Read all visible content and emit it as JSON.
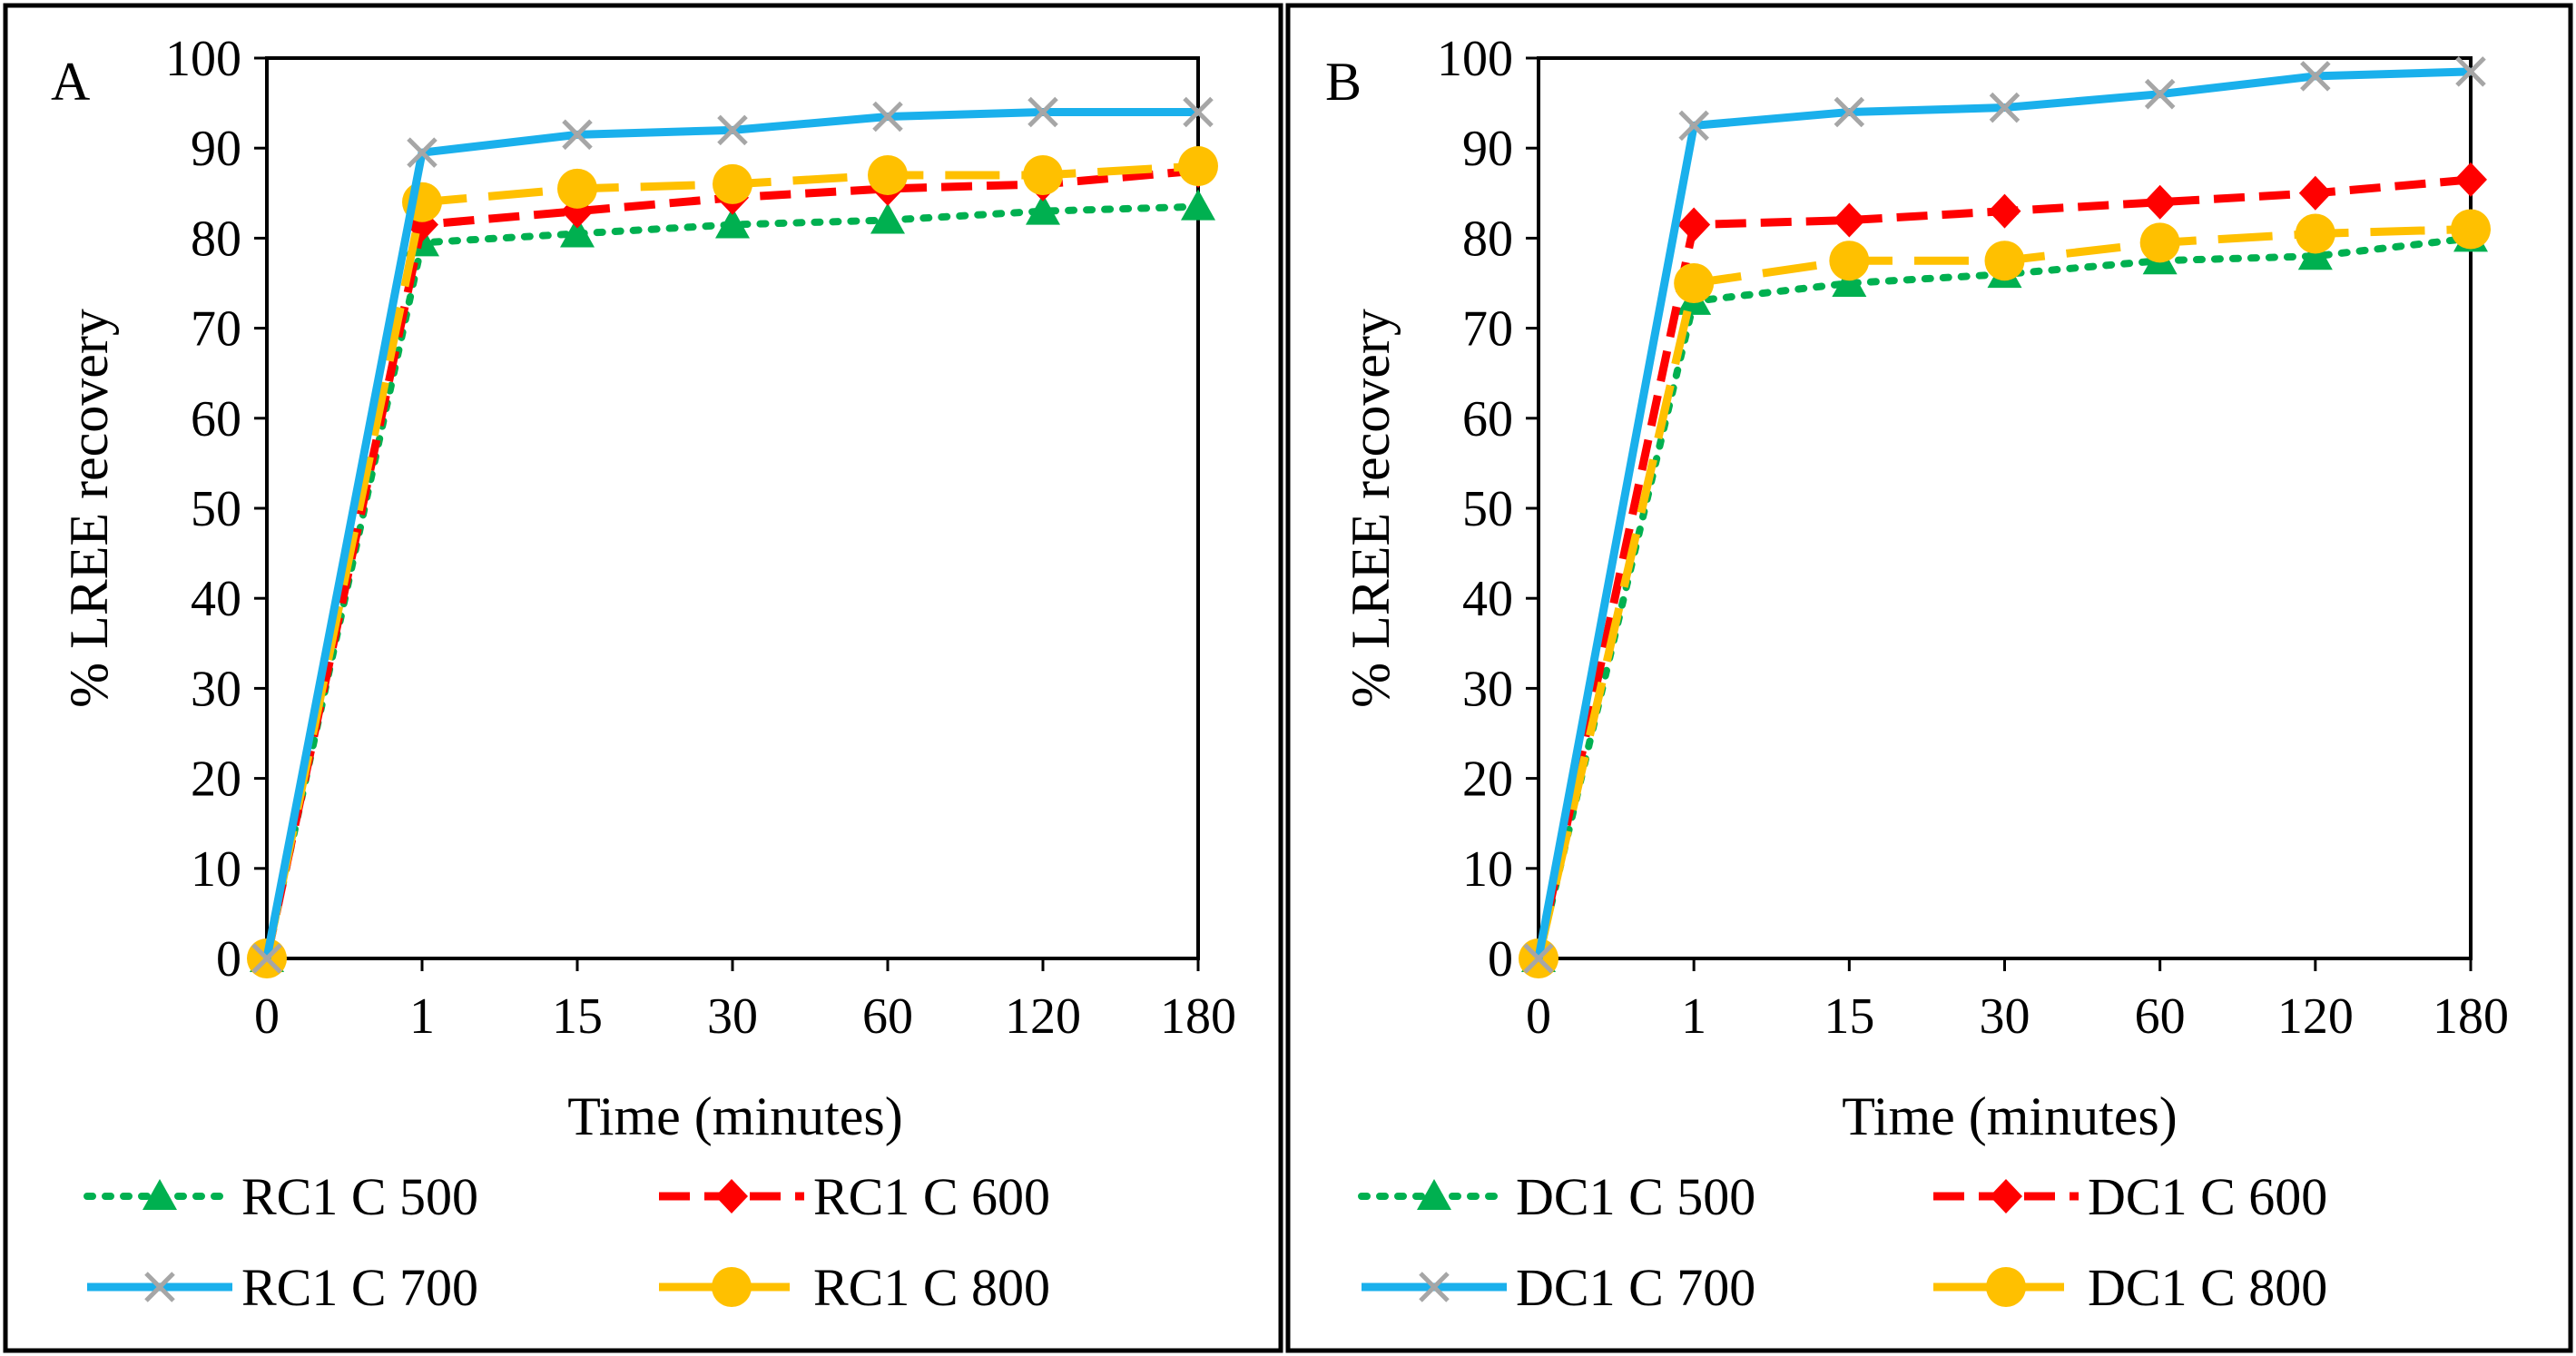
{
  "chart_data": [
    {
      "type": "line",
      "panel_label": "A",
      "categories": [
        "0",
        "1",
        "15",
        "30",
        "60",
        "120",
        "180"
      ],
      "xlabel": "Time (minutes)",
      "ylabel": "% LREE recovery",
      "ylim": [
        0,
        100
      ],
      "yticks": [
        "0",
        "10",
        "20",
        "30",
        "40",
        "50",
        "60",
        "70",
        "80",
        "90",
        "100"
      ],
      "grid": false,
      "legend_position": "bottom",
      "series": [
        {
          "name": "RC1 C 500",
          "values": [
            0,
            79.5,
            80.5,
            81.5,
            82,
            83,
            83.5
          ],
          "color": "#00b050",
          "dash": "dot",
          "marker": "triangle"
        },
        {
          "name": "RC1 C 600",
          "values": [
            0,
            81.5,
            83,
            84.5,
            85.5,
            86,
            87.5
          ],
          "color": "#ff0000",
          "dash": "dash",
          "marker": "diamond"
        },
        {
          "name": "RC1 C 700",
          "values": [
            0,
            89.5,
            91.5,
            92,
            93.5,
            94,
            94
          ],
          "color": "#1ab0ec",
          "dash": "solid",
          "marker": "x"
        },
        {
          "name": "RC1 C 800",
          "values": [
            0,
            84,
            85.5,
            86,
            87,
            87,
            88
          ],
          "color": "#ffc000",
          "dash": "longdash",
          "marker": "circle"
        }
      ]
    },
    {
      "type": "line",
      "panel_label": "B",
      "categories": [
        "0",
        "1",
        "15",
        "30",
        "60",
        "120",
        "180"
      ],
      "xlabel": "Time (minutes)",
      "ylabel": "% LREE recovery",
      "ylim": [
        0,
        100
      ],
      "yticks": [
        "0",
        "10",
        "20",
        "30",
        "40",
        "50",
        "60",
        "70",
        "80",
        "90",
        "100"
      ],
      "grid": false,
      "legend_position": "bottom",
      "series": [
        {
          "name": "DC1 C 500",
          "values": [
            0,
            73,
            75,
            76,
            77.5,
            78,
            80
          ],
          "color": "#00b050",
          "dash": "dot",
          "marker": "triangle"
        },
        {
          "name": "DC1 C 600",
          "values": [
            0,
            81.5,
            82,
            83,
            84,
            85,
            86.5
          ],
          "color": "#ff0000",
          "dash": "dash",
          "marker": "diamond"
        },
        {
          "name": "DC1 C 700",
          "values": [
            0,
            92.5,
            94,
            94.5,
            96,
            98,
            98.5
          ],
          "color": "#1ab0ec",
          "dash": "solid",
          "marker": "x"
        },
        {
          "name": "DC1 C 800",
          "values": [
            0,
            75,
            77.5,
            77.5,
            79.5,
            80.5,
            81
          ],
          "color": "#ffc000",
          "dash": "longdash",
          "marker": "circle"
        }
      ]
    }
  ]
}
